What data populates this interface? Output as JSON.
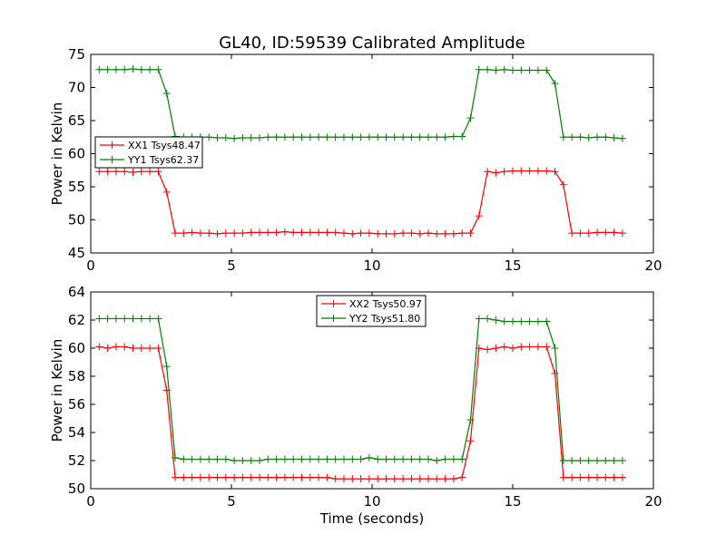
{
  "figure": {
    "title": "GL40, ID:59539 Calibrated Amplitude",
    "xlabel": "Time (seconds)"
  },
  "chart_data": [
    {
      "type": "line",
      "ylabel": "Power in Kelvin",
      "xlim": [
        0,
        20
      ],
      "ylim": [
        45,
        75
      ],
      "xticks": [
        "0",
        "5",
        "10",
        "15",
        "20"
      ],
      "yticks": [
        "45",
        "50",
        "55",
        "60",
        "65",
        "70",
        "75"
      ],
      "grid": false,
      "legend_position": "center-left",
      "x": [
        0.3,
        0.6,
        0.9,
        1.2,
        1.5,
        1.8,
        2.1,
        2.4,
        2.7,
        3.0,
        3.3,
        3.6,
        3.9,
        4.2,
        4.5,
        4.8,
        5.1,
        5.4,
        5.7,
        6.0,
        6.3,
        6.6,
        6.9,
        7.2,
        7.5,
        7.8,
        8.1,
        8.4,
        8.7,
        9.0,
        9.3,
        9.6,
        9.9,
        10.2,
        10.5,
        10.8,
        11.1,
        11.4,
        11.7,
        12.0,
        12.3,
        12.6,
        12.9,
        13.2,
        13.5,
        13.8,
        14.1,
        14.4,
        14.7,
        15.0,
        15.3,
        15.6,
        15.9,
        16.2,
        16.5,
        16.8,
        17.1,
        17.4,
        17.7,
        18.0,
        18.3,
        18.6,
        18.9
      ],
      "series": [
        {
          "name": "XX1 Tsys48.47",
          "color": "#ff0000",
          "values": [
            57.3,
            57.3,
            57.3,
            57.3,
            57.2,
            57.3,
            57.3,
            57.3,
            54.2,
            48.0,
            48.0,
            48.1,
            48.0,
            48.0,
            47.9,
            48.0,
            48.0,
            48.0,
            48.1,
            48.1,
            48.1,
            48.1,
            48.2,
            48.1,
            48.1,
            48.1,
            48.1,
            48.1,
            48.1,
            48.0,
            47.9,
            48.0,
            48.0,
            47.9,
            47.9,
            47.9,
            48.0,
            48.0,
            47.9,
            48.0,
            47.9,
            47.9,
            47.9,
            48.0,
            48.0,
            50.6,
            57.3,
            57.1,
            57.3,
            57.4,
            57.4,
            57.4,
            57.4,
            57.4,
            57.3,
            55.3,
            48.0,
            48.0,
            48.0,
            48.1,
            48.1,
            48.1,
            48.0
          ]
        },
        {
          "name": "YY1 Tsys62.37",
          "color": "#008000",
          "values": [
            72.7,
            72.7,
            72.7,
            72.7,
            72.8,
            72.7,
            72.7,
            72.7,
            69.1,
            62.6,
            62.5,
            62.5,
            62.5,
            62.5,
            62.4,
            62.4,
            62.3,
            62.4,
            62.4,
            62.4,
            62.5,
            62.5,
            62.5,
            62.5,
            62.5,
            62.5,
            62.5,
            62.5,
            62.5,
            62.5,
            62.5,
            62.5,
            62.5,
            62.5,
            62.5,
            62.5,
            62.5,
            62.5,
            62.5,
            62.5,
            62.5,
            62.5,
            62.6,
            62.6,
            65.4,
            72.7,
            72.7,
            72.6,
            72.7,
            72.6,
            72.6,
            72.6,
            72.6,
            72.6,
            70.6,
            62.5,
            62.5,
            62.5,
            62.4,
            62.5,
            62.5,
            62.4,
            62.3
          ]
        }
      ]
    },
    {
      "type": "line",
      "ylabel": "Power in Kelvin",
      "xlabel": "Time (seconds)",
      "xlim": [
        0,
        20
      ],
      "ylim": [
        50,
        64
      ],
      "xticks": [
        "0",
        "5",
        "10",
        "15",
        "20"
      ],
      "yticks": [
        "50",
        "52",
        "54",
        "56",
        "58",
        "60",
        "62",
        "64"
      ],
      "grid": false,
      "legend_position": "top-center",
      "x": [
        0.3,
        0.6,
        0.9,
        1.2,
        1.5,
        1.8,
        2.1,
        2.4,
        2.7,
        3.0,
        3.3,
        3.6,
        3.9,
        4.2,
        4.5,
        4.8,
        5.1,
        5.4,
        5.7,
        6.0,
        6.3,
        6.6,
        6.9,
        7.2,
        7.5,
        7.8,
        8.1,
        8.4,
        8.7,
        9.0,
        9.3,
        9.6,
        9.9,
        10.2,
        10.5,
        10.8,
        11.1,
        11.4,
        11.7,
        12.0,
        12.3,
        12.6,
        12.9,
        13.2,
        13.5,
        13.8,
        14.1,
        14.4,
        14.7,
        15.0,
        15.3,
        15.6,
        15.9,
        16.2,
        16.5,
        16.8,
        17.1,
        17.4,
        17.7,
        18.0,
        18.3,
        18.6,
        18.9
      ],
      "series": [
        {
          "name": "XX2 Tsys50.97",
          "color": "#ff0000",
          "values": [
            60.1,
            60.0,
            60.1,
            60.1,
            60.0,
            60.0,
            60.0,
            60.0,
            57.0,
            50.8,
            50.8,
            50.8,
            50.8,
            50.8,
            50.8,
            50.8,
            50.8,
            50.8,
            50.8,
            50.8,
            50.8,
            50.8,
            50.8,
            50.8,
            50.8,
            50.8,
            50.8,
            50.8,
            50.7,
            50.7,
            50.7,
            50.7,
            50.7,
            50.7,
            50.7,
            50.7,
            50.7,
            50.7,
            50.7,
            50.7,
            50.7,
            50.7,
            50.7,
            50.8,
            53.4,
            60.0,
            59.9,
            60.0,
            60.1,
            60.0,
            60.1,
            60.1,
            60.1,
            60.1,
            58.2,
            50.8,
            50.8,
            50.8,
            50.8,
            50.8,
            50.8,
            50.8,
            50.8
          ]
        },
        {
          "name": "YY2 Tsys51.80",
          "color": "#008000",
          "values": [
            62.1,
            62.1,
            62.1,
            62.1,
            62.1,
            62.1,
            62.1,
            62.1,
            58.7,
            52.2,
            52.1,
            52.1,
            52.1,
            52.1,
            52.1,
            52.1,
            52.0,
            52.0,
            52.0,
            52.0,
            52.1,
            52.1,
            52.1,
            52.1,
            52.1,
            52.1,
            52.1,
            52.1,
            52.1,
            52.1,
            52.1,
            52.1,
            52.2,
            52.1,
            52.1,
            52.1,
            52.1,
            52.1,
            52.1,
            52.1,
            52.0,
            52.1,
            52.1,
            52.1,
            54.9,
            62.1,
            62.1,
            62.0,
            61.9,
            61.9,
            61.9,
            61.9,
            61.9,
            61.9,
            60.0,
            52.0,
            52.0,
            52.0,
            52.0,
            52.0,
            52.0,
            52.0,
            52.0
          ]
        }
      ]
    }
  ]
}
